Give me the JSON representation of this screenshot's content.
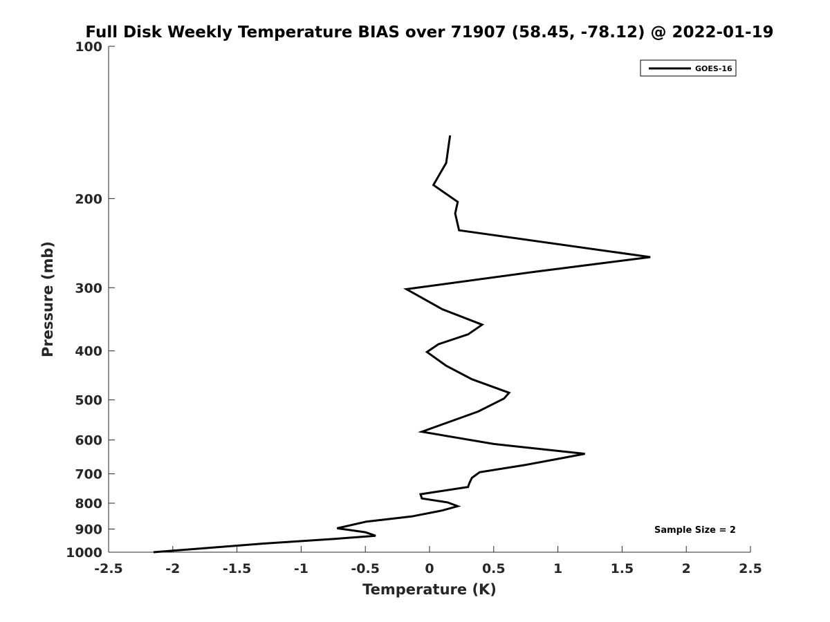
{
  "chart_data": {
    "type": "line",
    "title": "Full Disk Weekly Temperature BIAS over 71907 (58.45, -78.12) @ 2022-01-19",
    "xlabel": "Temperature (K)",
    "ylabel": "Pressure (mb)",
    "xlim": [
      -2.5,
      2.5
    ],
    "ylim": [
      100,
      1000
    ],
    "y_scale": "log",
    "y_reversed": true,
    "x_ticks": [
      -2.5,
      -2,
      -1.5,
      -1,
      -0.5,
      0,
      0.5,
      1,
      1.5,
      2,
      2.5
    ],
    "x_tick_labels": [
      "-2.5",
      "-2",
      "-1.5",
      "-1",
      "-0.5",
      "0",
      "0.5",
      "1",
      "1.5",
      "2",
      "2.5"
    ],
    "y_ticks": [
      100,
      200,
      300,
      400,
      500,
      600,
      700,
      800,
      900,
      1000
    ],
    "y_tick_labels": [
      "100",
      "200",
      "300",
      "400",
      "500",
      "600",
      "700",
      "800",
      "900",
      "1000"
    ],
    "grid": false,
    "legend": {
      "placement": "top-right"
    },
    "series": [
      {
        "name": "GOES-16",
        "color": "#000000",
        "points": [
          [
            0.16,
            150
          ],
          [
            0.13,
            170
          ],
          [
            0.03,
            188
          ],
          [
            0.22,
            203
          ],
          [
            0.2,
            214
          ],
          [
            0.23,
            231
          ],
          [
            1.72,
            261
          ],
          [
            0.82,
            279
          ],
          [
            -0.18,
            302
          ],
          [
            0.1,
            331
          ],
          [
            0.41,
            355
          ],
          [
            0.3,
            371
          ],
          [
            0.07,
            388
          ],
          [
            -0.02,
            402
          ],
          [
            0.13,
            428
          ],
          [
            0.33,
            455
          ],
          [
            0.62,
            484
          ],
          [
            0.58,
            497
          ],
          [
            0.38,
            527
          ],
          [
            -0.06,
            578
          ],
          [
            0.5,
            611
          ],
          [
            1.21,
            639
          ],
          [
            1.0,
            654
          ],
          [
            0.75,
            672
          ],
          [
            0.39,
            695
          ],
          [
            0.33,
            713
          ],
          [
            0.31,
            731
          ],
          [
            0.3,
            743
          ],
          [
            -0.07,
            768
          ],
          [
            -0.06,
            783
          ],
          [
            0.14,
            797
          ],
          [
            0.22,
            811
          ],
          [
            0.1,
            827
          ],
          [
            -0.14,
            850
          ],
          [
            -0.49,
            870
          ],
          [
            -0.72,
            897
          ],
          [
            -0.5,
            913
          ],
          [
            -0.42,
            928
          ],
          [
            -0.74,
            941
          ],
          [
            -1.31,
            962
          ],
          [
            -2.15,
            1000
          ]
        ]
      }
    ],
    "annotations": [
      "Sample Size = 2"
    ]
  },
  "legend": {
    "entries": [
      "GOES-16"
    ]
  },
  "annotation_text": "Sample Size = 2"
}
